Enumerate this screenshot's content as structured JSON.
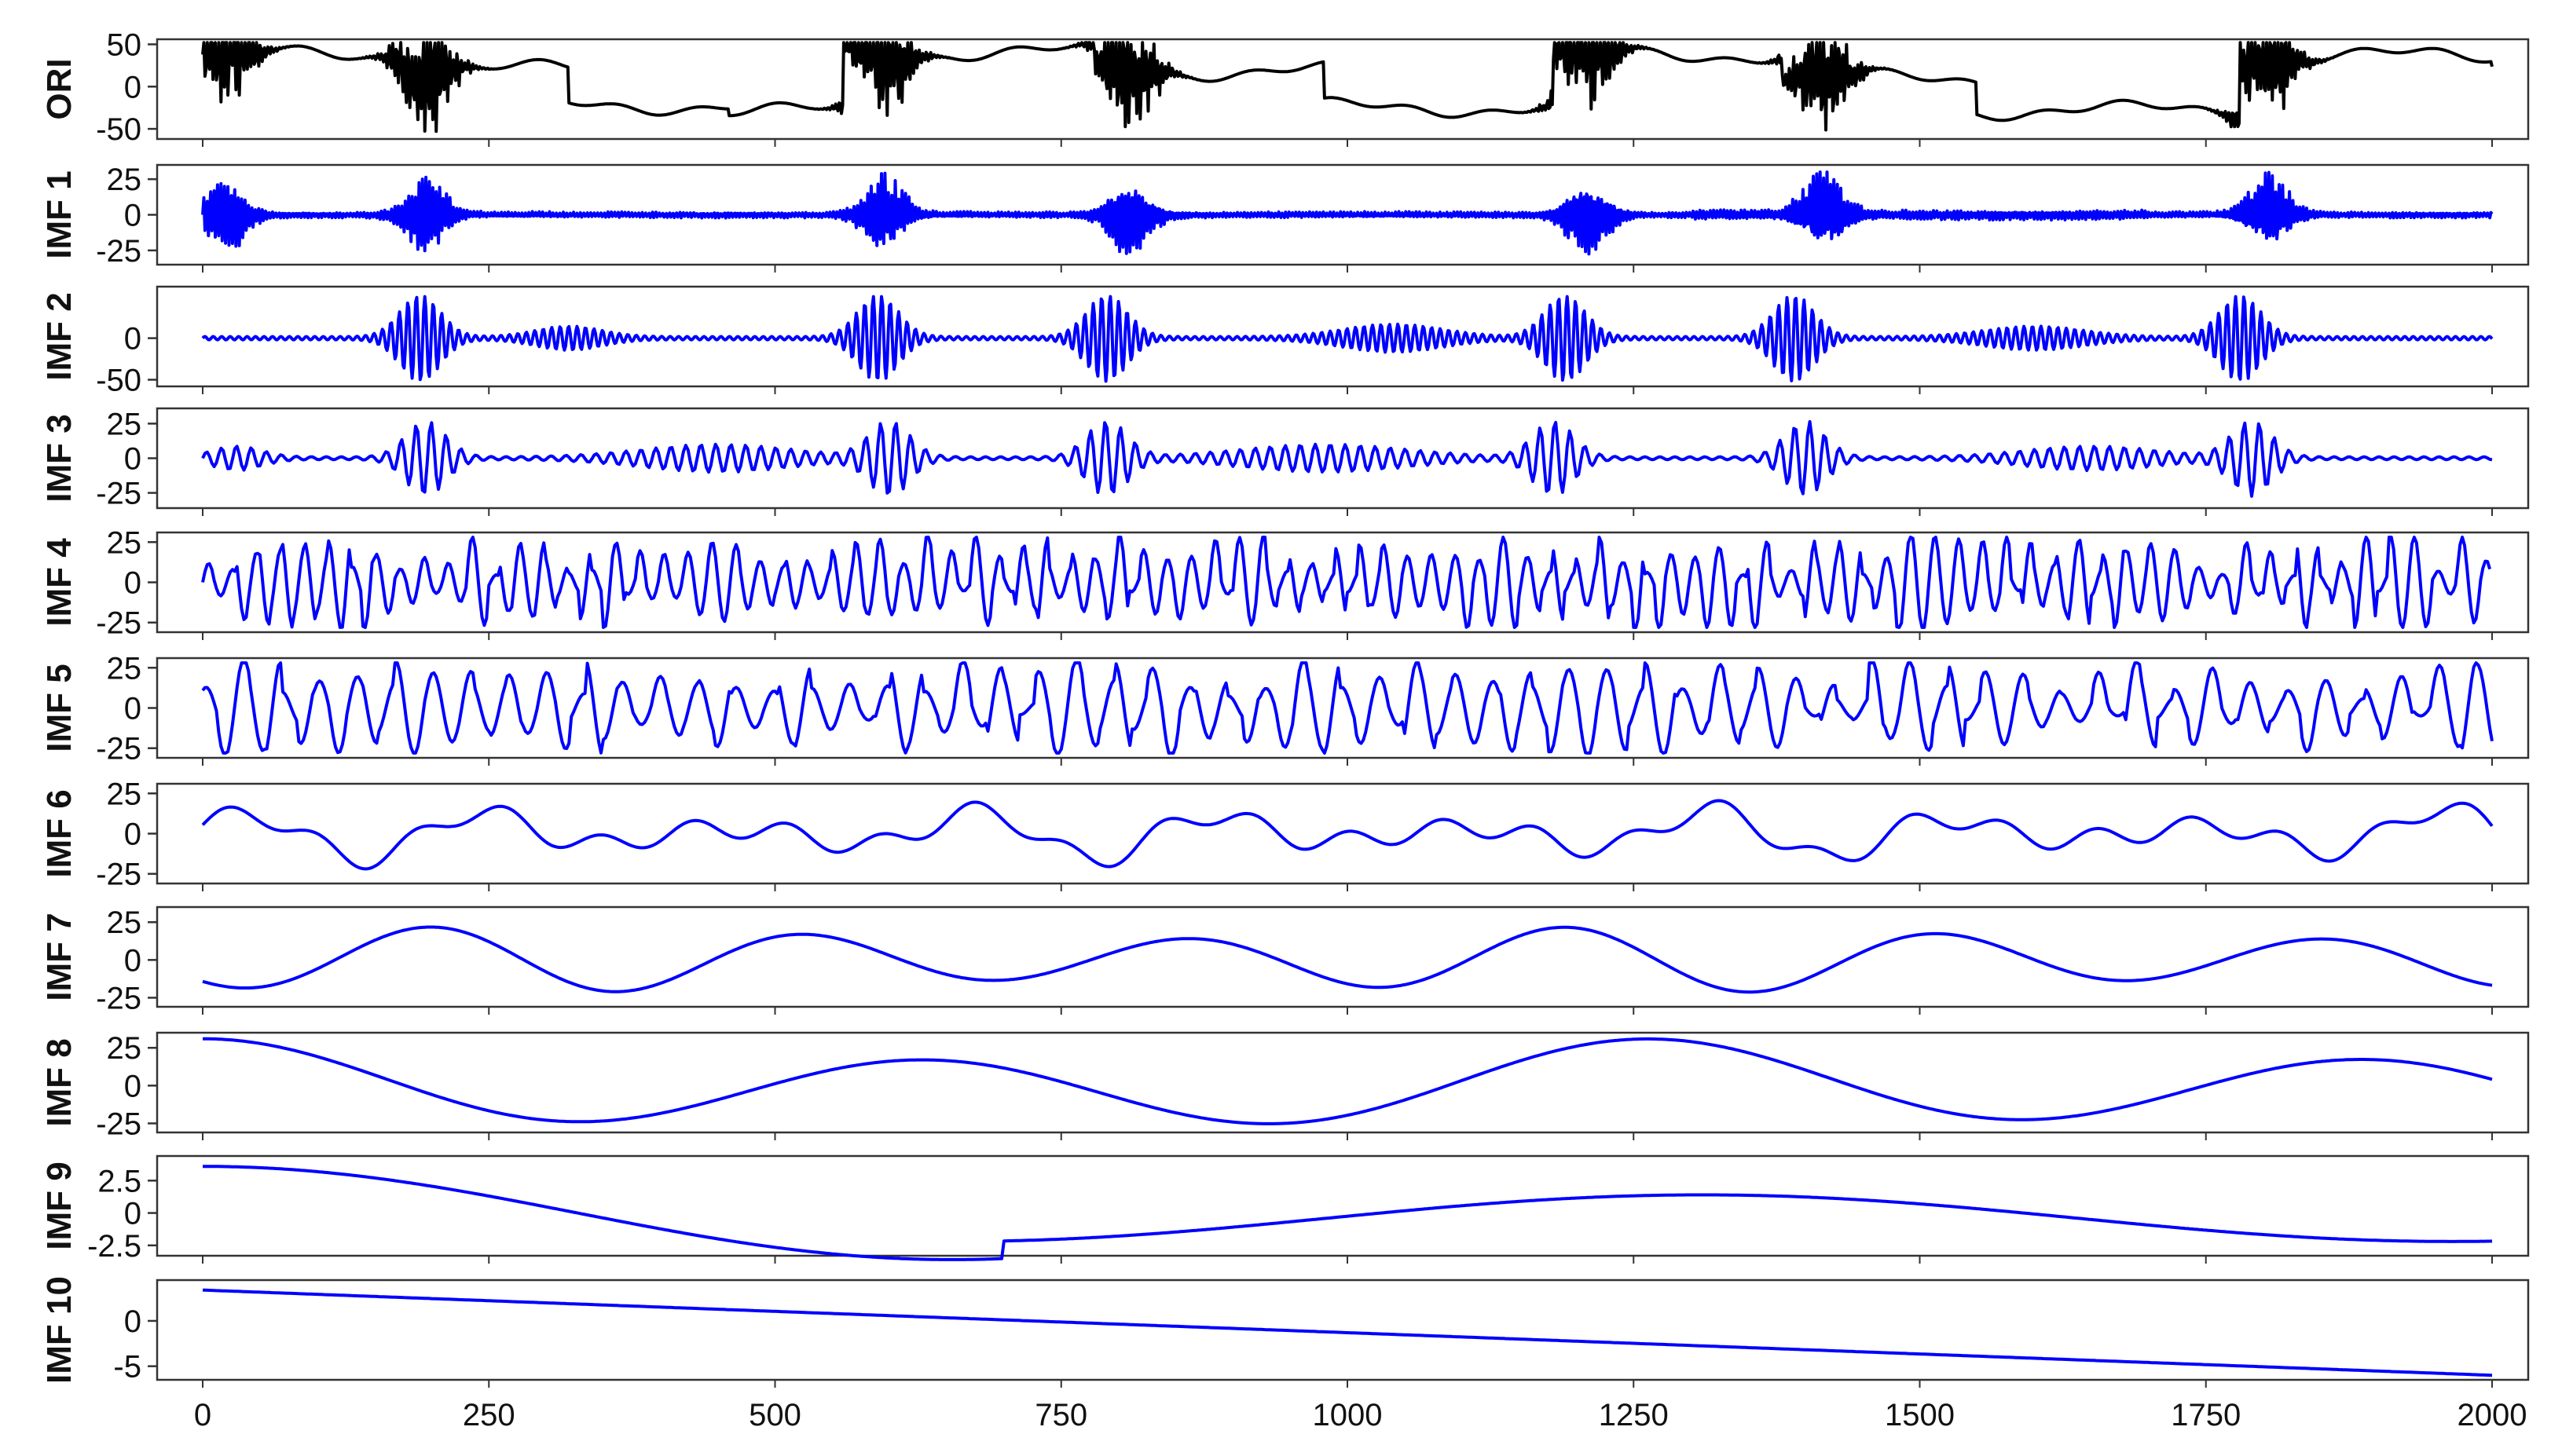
{
  "chart_data": {
    "type": "line",
    "x_range": [
      0,
      2000
    ],
    "x_ticks": [
      "0",
      "250",
      "500",
      "750",
      "1000",
      "1250",
      "1500",
      "1750",
      "2000"
    ],
    "x_tick_values": [
      0,
      250,
      500,
      750,
      1000,
      1250,
      1500,
      1750,
      2000
    ],
    "grid": false,
    "panels": [
      {
        "label": "ORI",
        "color": "#000000",
        "ylim": [
          -62,
          56
        ],
        "ticks": [
          "50",
          "0",
          "-50"
        ],
        "tick_values": [
          50,
          0,
          -50
        ]
      },
      {
        "label": "IMF 1",
        "color": "#0000ff",
        "ylim": [
          -35,
          35
        ],
        "ticks": [
          "25",
          "0",
          "-25"
        ],
        "tick_values": [
          25,
          0,
          -25
        ]
      },
      {
        "label": "IMF 2",
        "color": "#0000ff",
        "ylim": [
          -58,
          62
        ],
        "ticks": [
          "0",
          "-50"
        ],
        "tick_values": [
          0,
          -50
        ]
      },
      {
        "label": "IMF 3",
        "color": "#0000ff",
        "ylim": [
          -36,
          36
        ],
        "ticks": [
          "25",
          "0",
          "-25"
        ],
        "tick_values": [
          25,
          0,
          -25
        ]
      },
      {
        "label": "IMF 4",
        "color": "#0000ff",
        "ylim": [
          -31,
          31
        ],
        "ticks": [
          "25",
          "0",
          "-25"
        ],
        "tick_values": [
          25,
          0,
          -25
        ]
      },
      {
        "label": "IMF 5",
        "color": "#0000ff",
        "ylim": [
          -31,
          31
        ],
        "ticks": [
          "25",
          "0",
          "-25"
        ],
        "tick_values": [
          25,
          0,
          -25
        ]
      },
      {
        "label": "IMF 6",
        "color": "#0000ff",
        "ylim": [
          -31,
          31
        ],
        "ticks": [
          "25",
          "0",
          "-25"
        ],
        "tick_values": [
          25,
          0,
          -25
        ]
      },
      {
        "label": "IMF 7",
        "color": "#0000ff",
        "ylim": [
          -31,
          35
        ],
        "ticks": [
          "25",
          "0",
          "-25"
        ],
        "tick_values": [
          25,
          0,
          -25
        ]
      },
      {
        "label": "IMF 8",
        "color": "#0000ff",
        "ylim": [
          -31,
          35
        ],
        "ticks": [
          "25",
          "0",
          "-25"
        ],
        "tick_values": [
          25,
          0,
          -25
        ]
      },
      {
        "label": "IMF 9",
        "color": "#0000ff",
        "ylim": [
          -3.3,
          4.4
        ],
        "ticks": [
          "2.5",
          "0",
          "-2.5"
        ],
        "tick_values": [
          2.5,
          0,
          -2.5
        ]
      },
      {
        "label": "IMF 10",
        "color": "#0000ff",
        "ylim": [
          -6.5,
          4.5
        ],
        "ticks": [
          "0",
          "-5"
        ],
        "tick_values": [
          0,
          -5
        ]
      }
    ]
  }
}
